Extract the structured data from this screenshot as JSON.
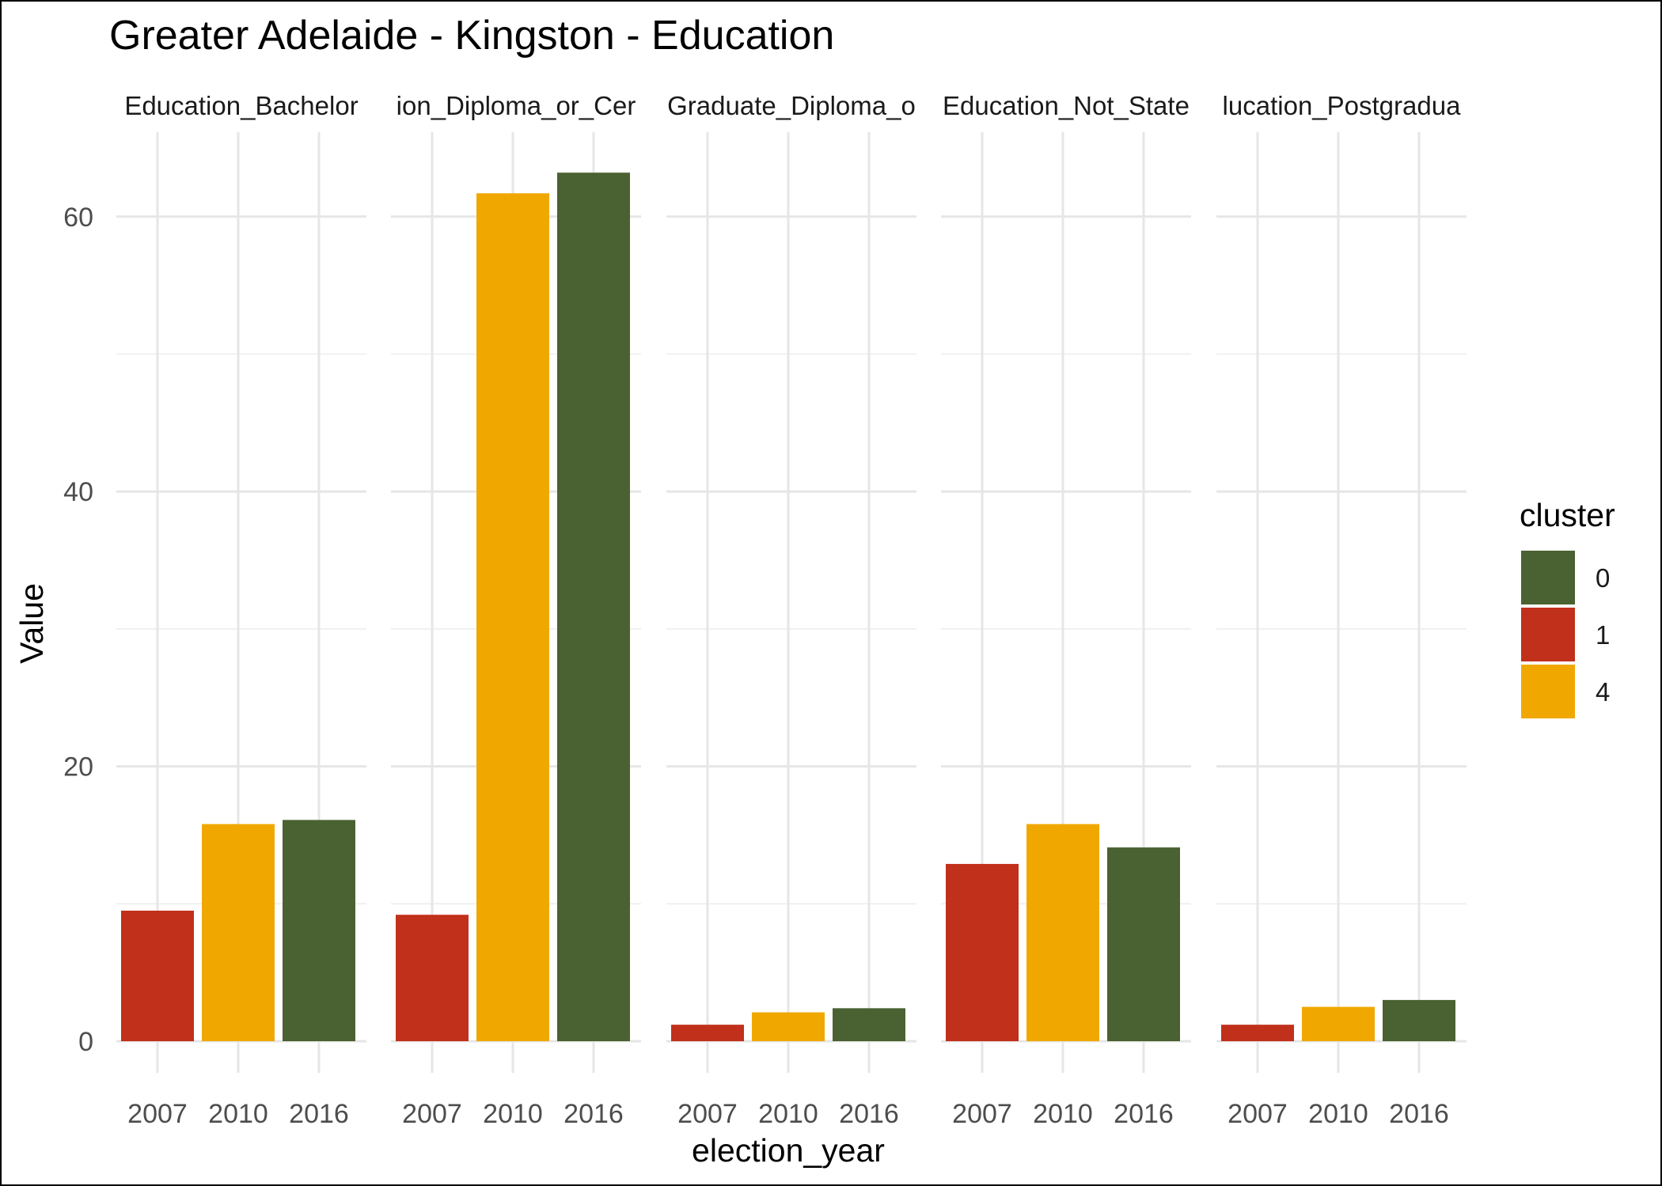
{
  "chart_data": {
    "type": "bar",
    "title": "Greater Adelaide - Kingston - Education",
    "xlabel": "election_year",
    "ylabel": "Value",
    "ylim": [
      0,
      65
    ],
    "yticks": [
      0,
      20,
      40,
      60
    ],
    "grid": true,
    "categories": [
      "2007",
      "2010",
      "2016"
    ],
    "bar_clusters": [
      "1",
      "4",
      "0"
    ],
    "facets": [
      {
        "label": "Education_Bachelor",
        "values": [
          9.5,
          15.8,
          16.1
        ]
      },
      {
        "label": "ion_Diploma_or_Cer",
        "values": [
          9.2,
          61.7,
          63.2
        ]
      },
      {
        "label": "Graduate_Diploma_o",
        "values": [
          1.2,
          2.1,
          2.4
        ]
      },
      {
        "label": "Education_Not_State",
        "values": [
          12.9,
          15.8,
          14.1
        ]
      },
      {
        "label": "lucation_Postgradua",
        "values": [
          1.2,
          2.5,
          3.0
        ]
      }
    ],
    "legend": {
      "title": "cluster",
      "position": "right",
      "entries": [
        {
          "label": "0",
          "color": "#4a6131"
        },
        {
          "label": "1",
          "color": "#c1301b"
        },
        {
          "label": "4",
          "color": "#f0a800"
        }
      ]
    }
  }
}
